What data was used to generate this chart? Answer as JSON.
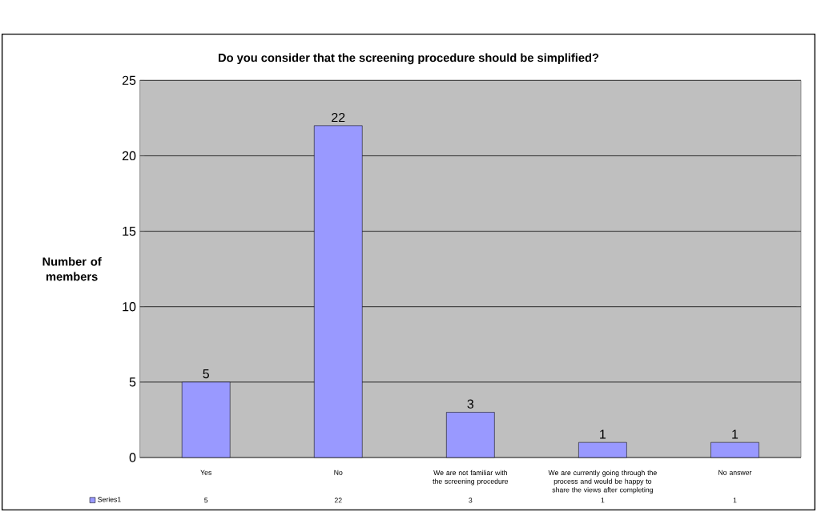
{
  "chart_data": {
    "type": "bar",
    "title": "Do you consider that the screening procedure should be simplified?",
    "ylabel": "Number of members",
    "categories": [
      "Yes",
      "No",
      "We are not familiar with the screening procedure",
      "We are currently going through the process and would be happy to share the views after completing",
      "No answer"
    ],
    "series": [
      {
        "name": "Series1",
        "color": "#9999ff",
        "values": [
          5,
          22,
          3,
          1,
          1
        ]
      }
    ],
    "annotations": [
      {
        "text": "5",
        "x": "Yes",
        "y": 5
      },
      {
        "text": "22",
        "x": "No",
        "y": 22
      },
      {
        "text": "3",
        "x": "We are not familiar with the screening procedure",
        "y": 3
      },
      {
        "text": "1",
        "x": "We are currently going through the process and would be happy to share the views after completing",
        "y": 1
      },
      {
        "text": "1",
        "x": "No answer",
        "y": 1
      }
    ],
    "ylim": [
      0,
      25
    ],
    "yticks": [
      0,
      5,
      10,
      15,
      20,
      25
    ],
    "grid": "y",
    "data_labels": true,
    "legend": "bottom left"
  }
}
